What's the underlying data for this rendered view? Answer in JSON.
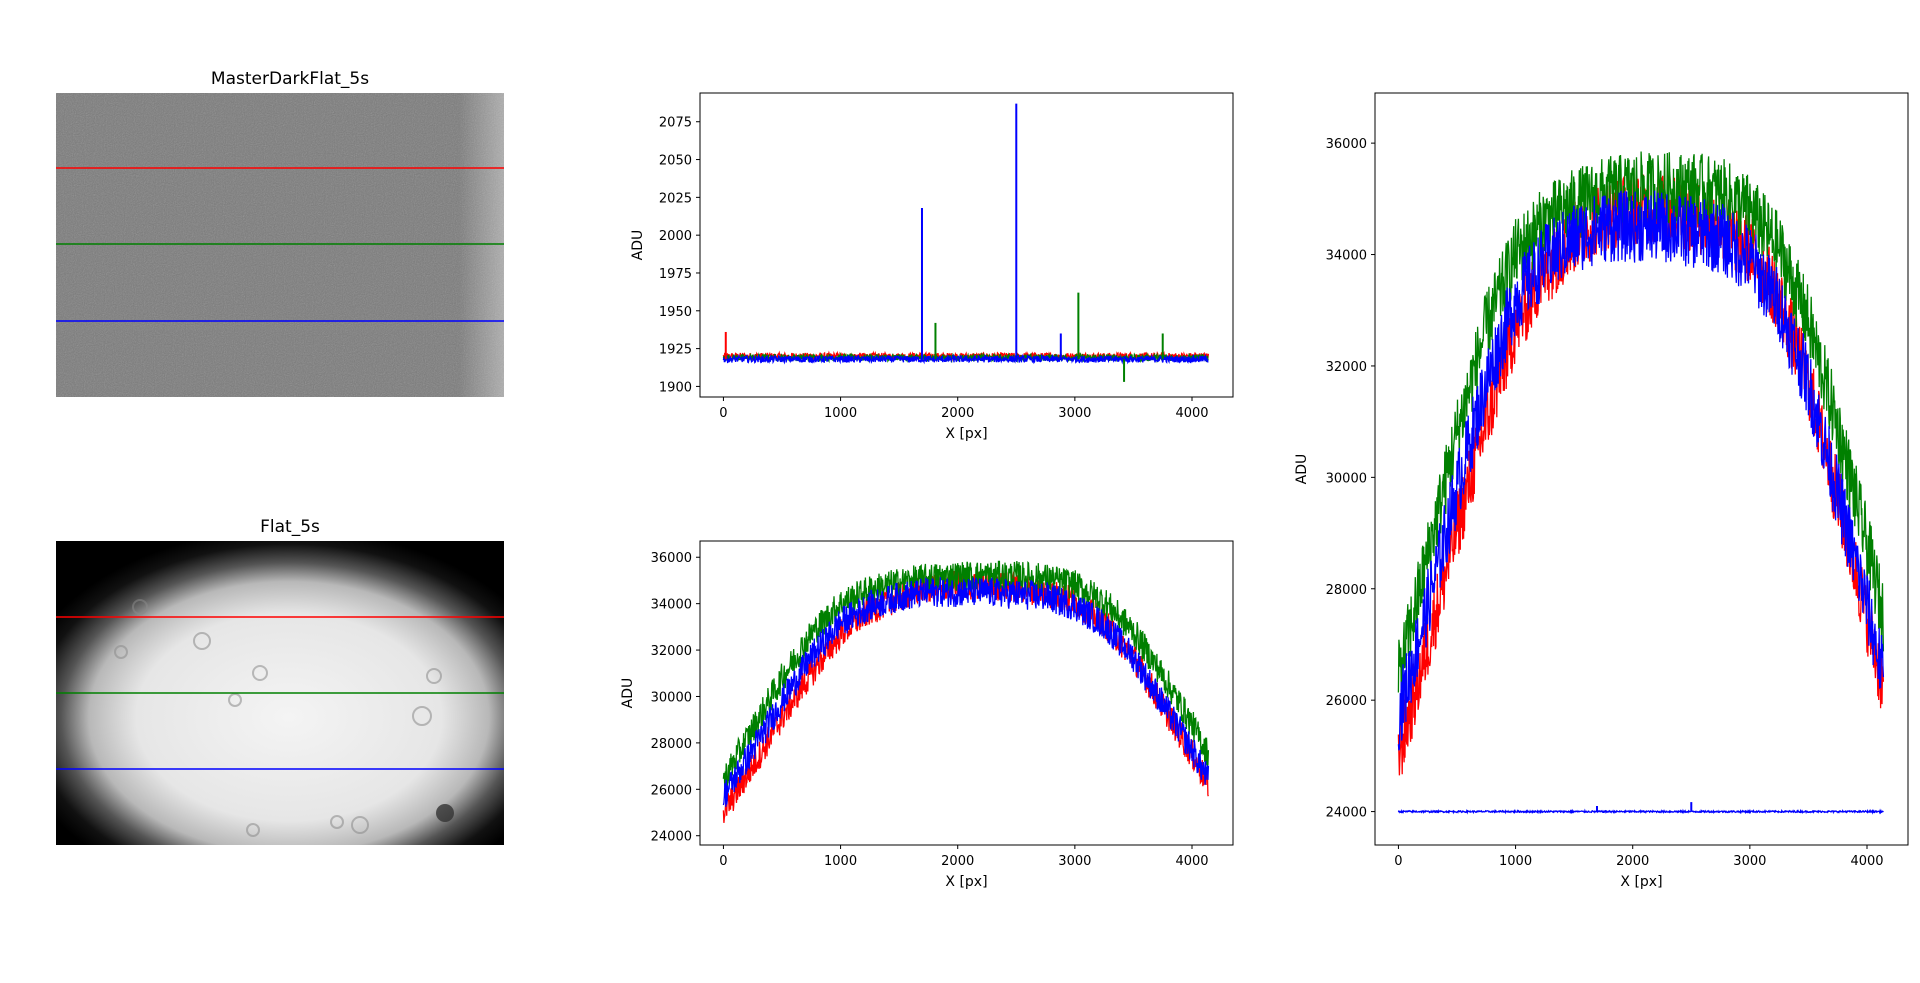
{
  "figure": {
    "images": [
      {
        "title": "MasterDarkFlat_5s",
        "kind": "dark"
      },
      {
        "title": "Flat_5s",
        "kind": "flat"
      }
    ]
  },
  "colors": {
    "red": "#ff0000",
    "green": "#008000",
    "blue": "#0000ff"
  },
  "chart_data": [
    {
      "id": "dark-profile",
      "type": "line",
      "xlabel": "X [px]",
      "ylabel": "ADU",
      "xlim": [
        -200,
        4350
      ],
      "ylim": [
        1893,
        2094
      ],
      "xticks": [
        0,
        1000,
        2000,
        3000,
        4000
      ],
      "yticks": [
        1900,
        1925,
        1950,
        1975,
        2000,
        2025,
        2050,
        2075
      ],
      "series": [
        {
          "color": "#ff0000",
          "x": [
            0,
            500,
            1000,
            1500,
            2000,
            2500,
            3000,
            3500,
            4140
          ],
          "y": [
            1920,
            1920,
            1920,
            1920,
            1920,
            1920,
            1920,
            1920,
            1920
          ]
        },
        {
          "color": "#008000",
          "x": [
            0,
            500,
            1000,
            1500,
            2000,
            2500,
            3000,
            3500,
            4140
          ],
          "y": [
            1919,
            1919,
            1919,
            1919,
            1919,
            1919,
            1919,
            1919,
            1919
          ]
        },
        {
          "color": "#0000ff",
          "x": [
            0,
            500,
            1000,
            1500,
            2000,
            2500,
            3000,
            3500,
            4140
          ],
          "y": [
            1918,
            1918,
            1918,
            1918,
            1918,
            1918,
            1918,
            1918,
            1918
          ]
        }
      ],
      "spikes": [
        {
          "color": "#0000ff",
          "x": 1695,
          "y": 2018
        },
        {
          "color": "#0000ff",
          "x": 2500,
          "y": 2087
        },
        {
          "color": "#008000",
          "x": 3030,
          "y": 1962
        },
        {
          "color": "#008000",
          "x": 1810,
          "y": 1942
        },
        {
          "color": "#008000",
          "x": 3750,
          "y": 1935
        },
        {
          "color": "#ff0000",
          "x": 20,
          "y": 1936
        },
        {
          "color": "#0000ff",
          "x": 2880,
          "y": 1935
        },
        {
          "color": "#008000",
          "x": 3420,
          "y": 1903
        }
      ]
    },
    {
      "id": "flat-profile",
      "type": "line",
      "xlabel": "X [px]",
      "ylabel": "ADU",
      "xlim": [
        -200,
        4350
      ],
      "ylim": [
        23600,
        36700
      ],
      "xticks": [
        0,
        1000,
        2000,
        3000,
        4000
      ],
      "yticks": [
        24000,
        26000,
        28000,
        30000,
        32000,
        34000,
        36000
      ],
      "series": [
        {
          "color": "#ff0000",
          "x": [
            0,
            250,
            500,
            750,
            1000,
            1250,
            1500,
            1750,
            2000,
            2250,
            2500,
            2750,
            3000,
            3250,
            3500,
            3750,
            4000,
            4140
          ],
          "y": [
            25000,
            27000,
            29100,
            31000,
            32700,
            33700,
            34300,
            34700,
            34800,
            34800,
            34700,
            34500,
            34100,
            33200,
            31700,
            29600,
            27500,
            26200
          ]
        },
        {
          "color": "#008000",
          "x": [
            0,
            250,
            500,
            750,
            1000,
            1250,
            1500,
            1750,
            2000,
            2250,
            2500,
            2750,
            3000,
            3250,
            3500,
            3750,
            4000,
            4140
          ],
          "y": [
            26400,
            28600,
            30800,
            32700,
            34000,
            34600,
            34900,
            35100,
            35200,
            35200,
            35200,
            35100,
            34800,
            34100,
            32800,
            30900,
            28800,
            27500
          ]
        },
        {
          "color": "#0000ff",
          "x": [
            0,
            250,
            500,
            750,
            1000,
            1250,
            1500,
            1750,
            2000,
            2250,
            2500,
            2750,
            3000,
            3250,
            3500,
            3750,
            4000,
            4140
          ],
          "y": [
            25700,
            27700,
            29800,
            31700,
            33200,
            33900,
            34300,
            34500,
            34500,
            34500,
            34400,
            34300,
            33900,
            33100,
            31700,
            29700,
            27700,
            26400
          ]
        }
      ]
    },
    {
      "id": "combined-profile",
      "type": "line",
      "xlabel": "X [px]",
      "ylabel": "ADU",
      "xlim": [
        -200,
        4350
      ],
      "ylim": [
        23400,
        36900
      ],
      "xticks": [
        0,
        1000,
        2000,
        3000,
        4000
      ],
      "yticks": [
        24000,
        26000,
        28000,
        30000,
        32000,
        34000,
        36000
      ],
      "series": [
        {
          "color": "#ff0000",
          "x": [
            0,
            250,
            500,
            750,
            1000,
            1250,
            1500,
            1750,
            2000,
            2250,
            2500,
            2750,
            3000,
            3250,
            3500,
            3750,
            4000,
            4140
          ],
          "y": [
            25000,
            27000,
            29100,
            31000,
            32700,
            33700,
            34300,
            34700,
            34800,
            34800,
            34700,
            34500,
            34100,
            33200,
            31700,
            29600,
            27500,
            26200
          ]
        },
        {
          "color": "#008000",
          "x": [
            0,
            250,
            500,
            750,
            1000,
            1250,
            1500,
            1750,
            2000,
            2250,
            2500,
            2750,
            3000,
            3250,
            3500,
            3750,
            4000,
            4140
          ],
          "y": [
            26400,
            28600,
            30800,
            32700,
            34000,
            34600,
            34900,
            35100,
            35200,
            35200,
            35200,
            35100,
            34800,
            34100,
            32800,
            30900,
            28800,
            27500
          ]
        },
        {
          "color": "#0000ff",
          "x": [
            0,
            250,
            500,
            750,
            1000,
            1250,
            1500,
            1750,
            2000,
            2250,
            2500,
            2750,
            3000,
            3250,
            3500,
            3750,
            4000,
            4140
          ],
          "y": [
            25700,
            27700,
            29800,
            31700,
            33200,
            33900,
            34300,
            34500,
            34500,
            34500,
            34400,
            34300,
            33900,
            33100,
            31700,
            29700,
            27700,
            26400
          ]
        },
        {
          "color": "#0000ff",
          "x": [
            0,
            500,
            1000,
            1500,
            2000,
            2500,
            3000,
            3500,
            4140
          ],
          "y": [
            24000,
            24000,
            24000,
            24000,
            24000,
            24000,
            24000,
            24000,
            24000
          ]
        }
      ],
      "spikes": [
        {
          "color": "#0000ff",
          "x": 1695,
          "y": 24100
        },
        {
          "color": "#0000ff",
          "x": 2500,
          "y": 24170
        }
      ]
    }
  ]
}
